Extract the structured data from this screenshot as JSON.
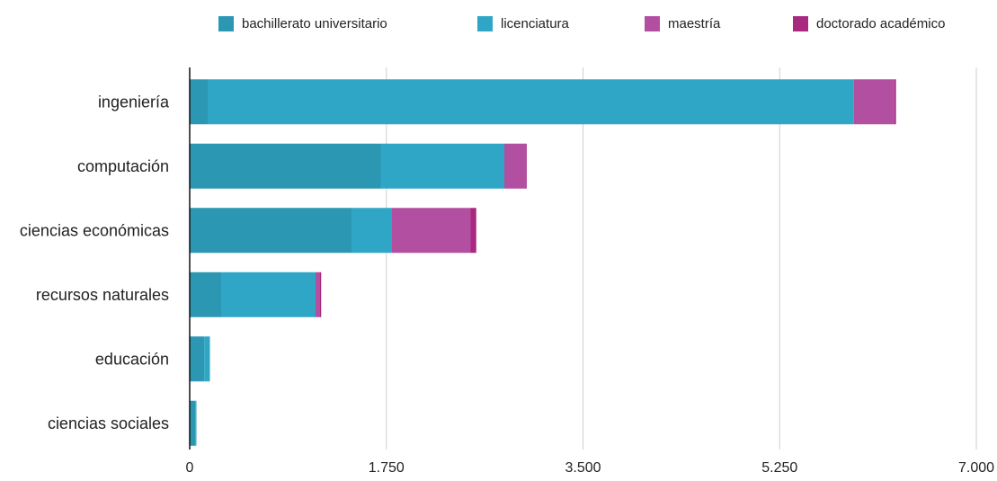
{
  "chart_data": {
    "type": "bar",
    "orientation": "horizontal",
    "stacked": true,
    "categories": [
      "ingeniería",
      "computación",
      "ciencias económicas",
      "recursos naturales",
      "educación",
      "ciencias sociales"
    ],
    "series": [
      {
        "name": "bachillerato universitario",
        "color": "#2b97b3",
        "values": [
          160,
          1700,
          1440,
          280,
          130,
          50
        ]
      },
      {
        "name": "licenciatura",
        "color": "#30a6c6",
        "values": [
          5750,
          1100,
          360,
          840,
          50,
          10
        ]
      },
      {
        "name": "maestría",
        "color": "#b34fa0",
        "values": [
          360,
          200,
          700,
          40,
          0,
          0
        ]
      },
      {
        "name": "doctorado académico",
        "color": "#a8297f",
        "values": [
          15,
          0,
          50,
          10,
          0,
          0
        ]
      }
    ],
    "x_ticks": [
      "0",
      "1.750",
      "3.500",
      "5.250",
      "7.000"
    ],
    "x_tick_values": [
      0,
      1750,
      3500,
      5250,
      7000
    ],
    "xlim": [
      0,
      7000
    ],
    "grid": true,
    "legend_position": "top",
    "title": "",
    "xlabel": "",
    "ylabel": ""
  }
}
